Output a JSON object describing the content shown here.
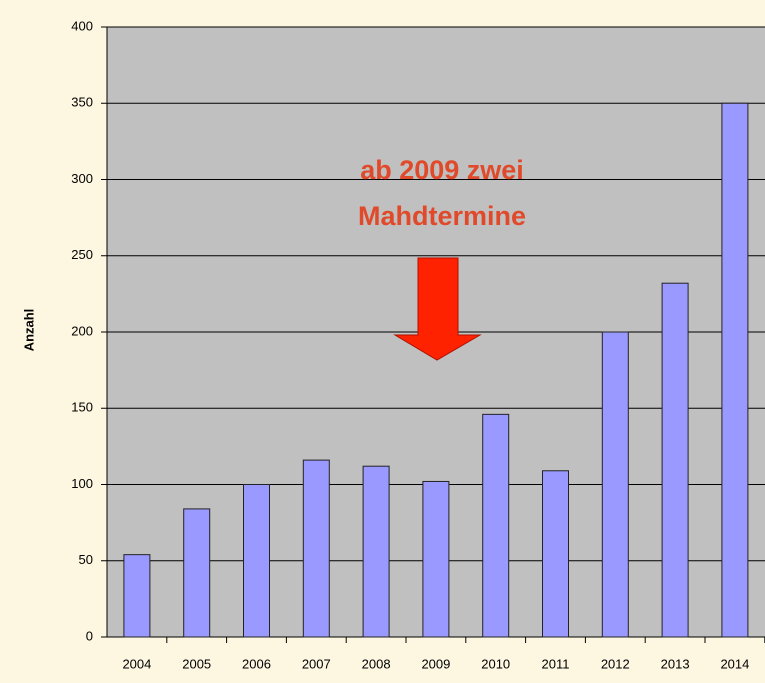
{
  "chart_data": {
    "type": "bar",
    "y_label": "Anzahl",
    "annotation": [
      "ab 2009 zwei",
      "Mahdtermine"
    ],
    "categories": [
      "2004",
      "2005",
      "2006",
      "2007",
      "2008",
      "2009",
      "2010",
      "2011",
      "2012",
      "2013",
      "2014"
    ],
    "values": [
      54,
      84,
      100,
      116,
      112,
      102,
      146,
      109,
      200,
      232,
      350
    ],
    "color": "#9999ff",
    "ylim": [
      0,
      400
    ],
    "yticks": [
      0,
      50,
      100,
      150,
      200,
      250,
      300,
      350,
      400
    ],
    "grid": true
  }
}
